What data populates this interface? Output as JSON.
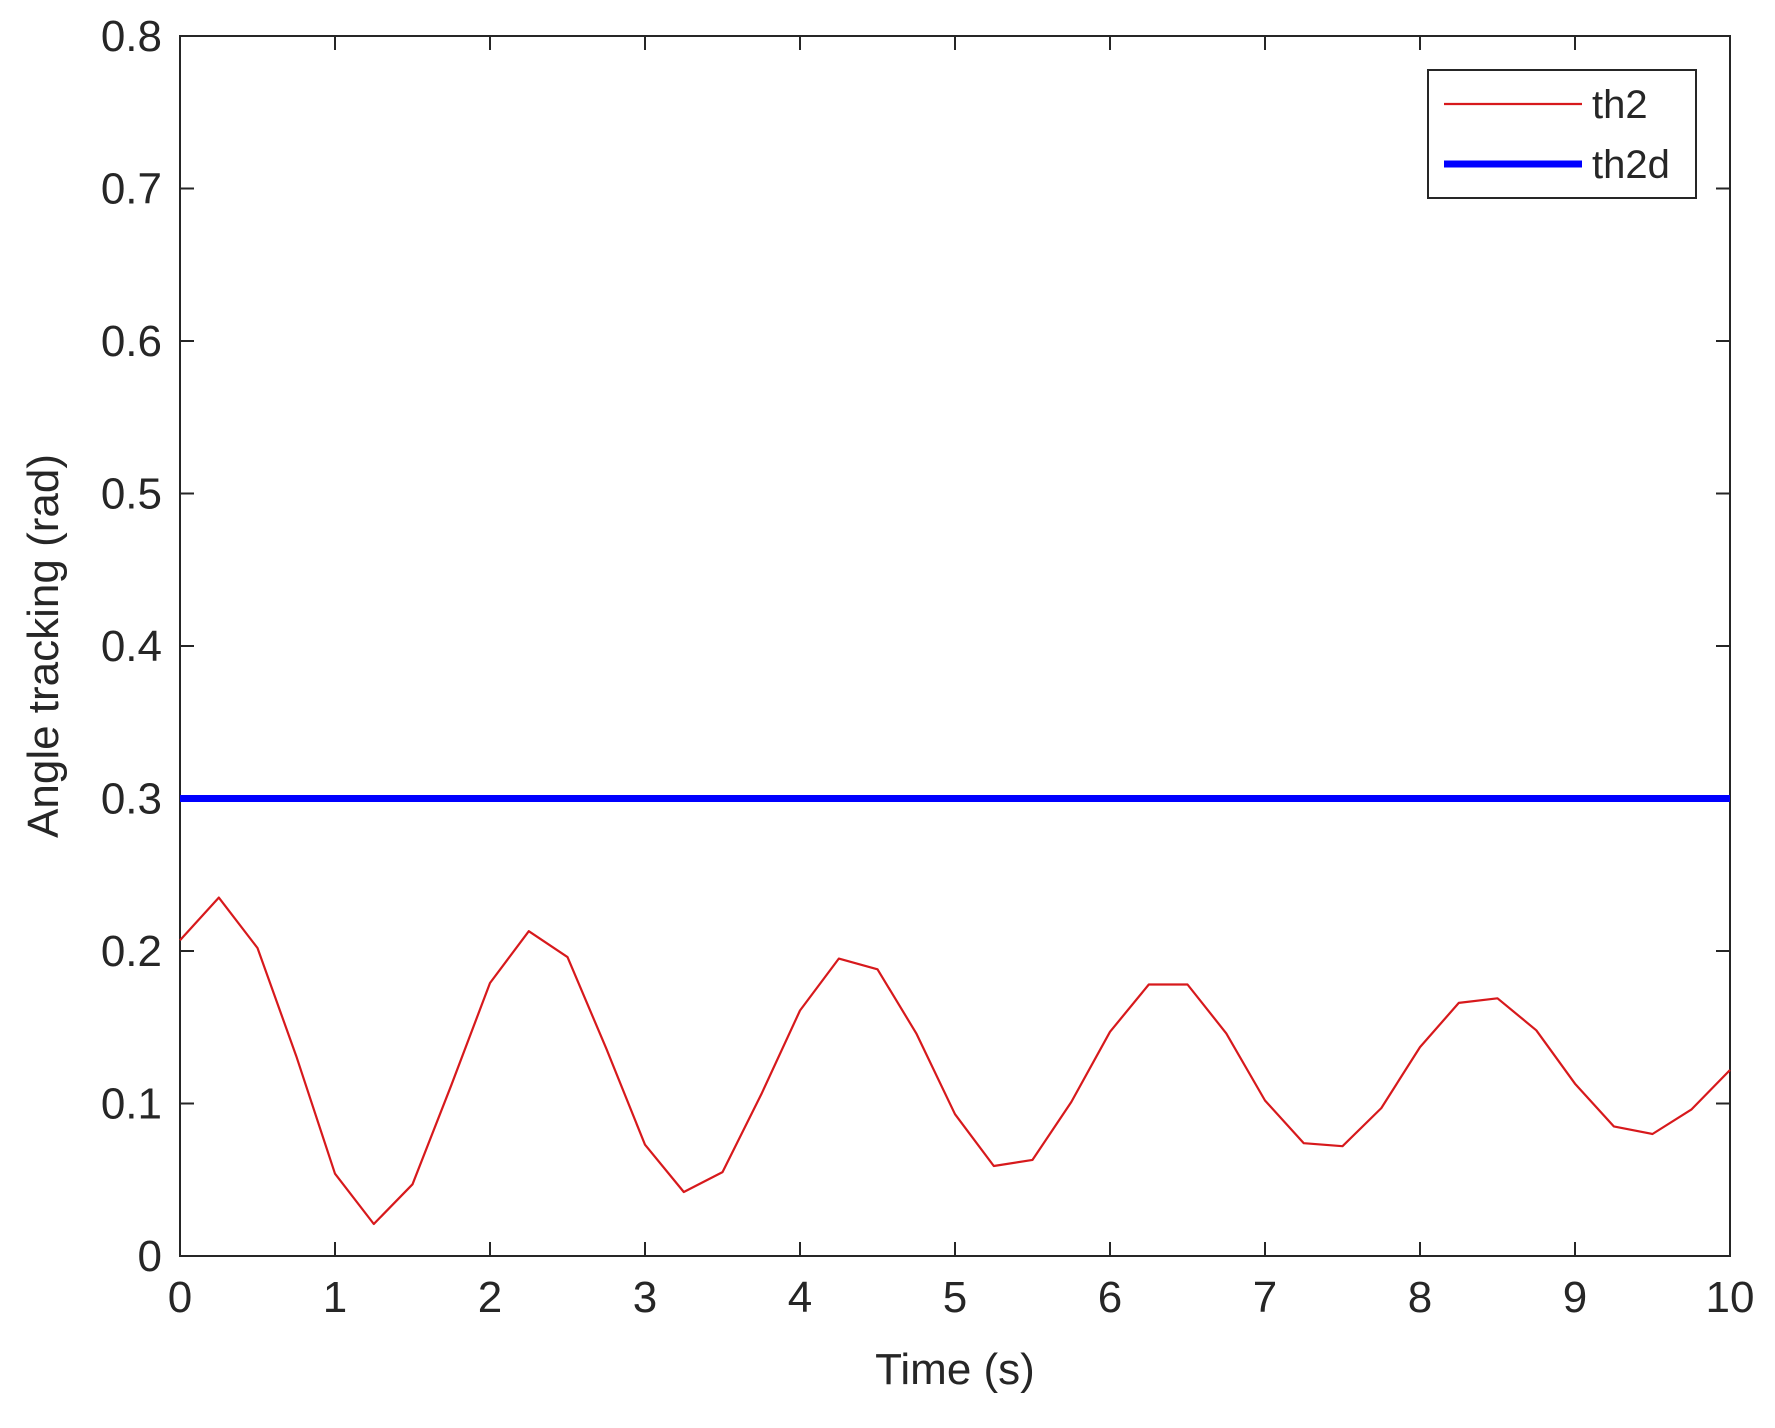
{
  "chart_data": {
    "type": "line",
    "xlabel": "Time (s)",
    "ylabel": "Angle tracking (rad)",
    "xlim": [
      0,
      10
    ],
    "ylim": [
      0,
      0.8
    ],
    "xticks": [
      0,
      1,
      2,
      3,
      4,
      5,
      6,
      7,
      8,
      9,
      10
    ],
    "yticks": [
      0,
      0.1,
      0.2,
      0.3,
      0.4,
      0.5,
      0.6,
      0.7,
      0.8
    ],
    "xtick_labels": [
      "0",
      "1",
      "2",
      "3",
      "4",
      "5",
      "6",
      "7",
      "8",
      "9",
      "10"
    ],
    "ytick_labels": [
      "0",
      "0.1",
      "0.2",
      "0.3",
      "0.4",
      "0.5",
      "0.6",
      "0.7",
      "0.8"
    ],
    "grid": false,
    "legend_position": "top-right",
    "series": [
      {
        "name": "th2",
        "color": "#d7191c",
        "line_style": "thin",
        "x": [
          0,
          0.25,
          0.5,
          0.75,
          1.0,
          1.25,
          1.5,
          1.75,
          2.0,
          2.25,
          2.5,
          2.75,
          3.0,
          3.25,
          3.5,
          3.75,
          4.0,
          4.25,
          4.5,
          4.75,
          5.0,
          5.25,
          5.5,
          5.75,
          6.0,
          6.25,
          6.5,
          6.75,
          7.0,
          7.25,
          7.5,
          7.75,
          8.0,
          8.25,
          8.5,
          8.75,
          9.0,
          9.25,
          9.5,
          9.75,
          10.0
        ],
        "y": [
          0.207,
          0.235,
          0.202,
          0.131,
          0.054,
          0.021,
          0.047,
          0.112,
          0.179,
          0.213,
          0.196,
          0.136,
          0.073,
          0.042,
          0.055,
          0.106,
          0.161,
          0.195,
          0.188,
          0.146,
          0.093,
          0.059,
          0.063,
          0.101,
          0.147,
          0.178,
          0.178,
          0.146,
          0.102,
          0.074,
          0.072,
          0.097,
          0.137,
          0.166,
          0.169,
          0.148,
          0.113,
          0.085,
          0.08,
          0.096,
          0.122
        ]
      },
      {
        "name": "th2d",
        "color": "#0000ff",
        "line_style": "thick",
        "x": [
          0,
          10
        ],
        "y": [
          0.3,
          0.3
        ]
      }
    ]
  }
}
